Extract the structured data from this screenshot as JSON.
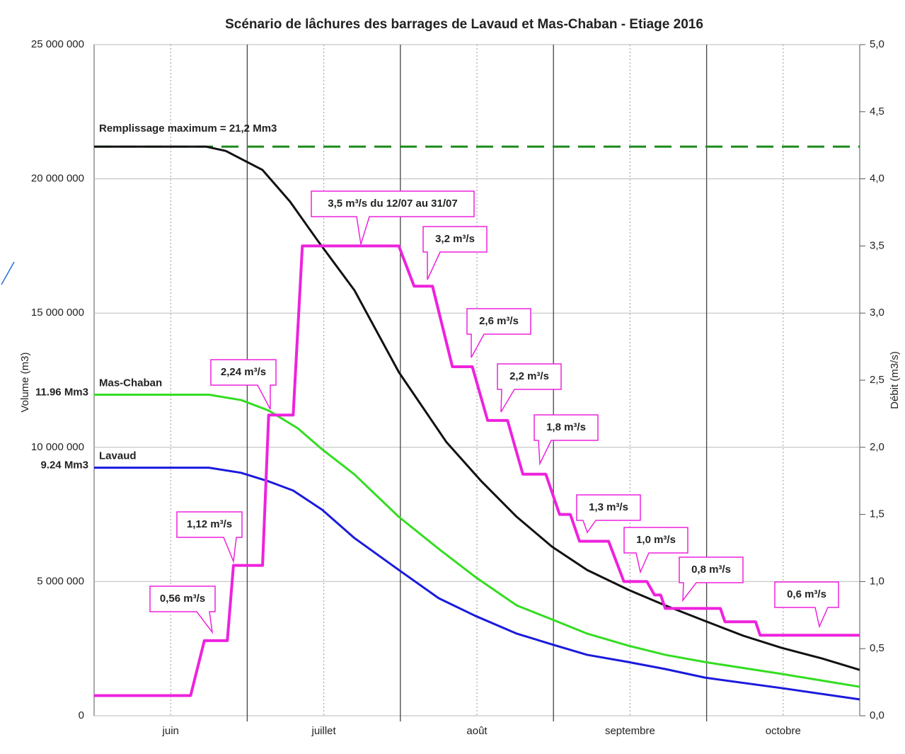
{
  "chart_data": {
    "type": "line",
    "title": "Scénario de lâchures des barrages de Lavaud et Mas-Chaban - Etiage 2016",
    "y_label": "Volume (m3)",
    "y2_label": "Débit (m3/s)",
    "categories": [
      "juin",
      "juillet",
      "août",
      "septembre",
      "octobre"
    ],
    "xlim": [
      0,
      5
    ],
    "ylim": [
      0,
      25000000
    ],
    "yticks": [
      {
        "value": 0,
        "label": "0"
      },
      {
        "value": 5000000,
        "label": "5 000 000"
      },
      {
        "value": 10000000,
        "label": "10 000 000"
      },
      {
        "value": 15000000,
        "label": "15 000 000"
      },
      {
        "value": 20000000,
        "label": "20 000 000"
      },
      {
        "value": 25000000,
        "label": "25 000 000"
      }
    ],
    "y2lim": [
      0,
      5
    ],
    "y2ticks": [
      {
        "value": 0,
        "label": "0,0"
      },
      {
        "value": 0.5,
        "label": "0,5"
      },
      {
        "value": 1,
        "label": "1,0"
      },
      {
        "value": 1.5,
        "label": "1,5"
      },
      {
        "value": 2,
        "label": "2,0"
      },
      {
        "value": 2.5,
        "label": "2,5"
      },
      {
        "value": 3,
        "label": "3,0"
      },
      {
        "value": 3.5,
        "label": "3,5"
      },
      {
        "value": 4,
        "label": "4,0"
      },
      {
        "value": 4.5,
        "label": "4,5"
      },
      {
        "value": 5,
        "label": "5,0"
      }
    ],
    "grid": true,
    "reference_line": {
      "value": 21200000,
      "label": "Remplissage maximum = 21,2 Mm3",
      "color": "#1a8a1a"
    },
    "series": [
      {
        "color": "#111111",
        "x": [
          0,
          0.73,
          0.86,
          1.1,
          1.28,
          1.46,
          1.7,
          1.99,
          2.3,
          2.53,
          2.76,
          2.99,
          3.22,
          3.49,
          3.73,
          3.99,
          4.24,
          4.49,
          4.75,
          5
        ],
        "values": [
          21200000,
          21200000,
          21040000,
          20330000,
          19150000,
          17700000,
          15850000,
          12800000,
          10200000,
          8730000,
          7410000,
          6300000,
          5430000,
          4690000,
          4110000,
          3530000,
          2980000,
          2530000,
          2140000,
          1710000
        ]
      },
      {
        "name": "Mas-Chaban",
        "color": "#33dd22",
        "start_label": "11.96 Mm3",
        "x": [
          0,
          0.75,
          0.96,
          1.14,
          1.33,
          1.49,
          1.7,
          1.99,
          2.25,
          2.49,
          2.76,
          2.99,
          3.22,
          3.49,
          3.73,
          3.99,
          4.49,
          5
        ],
        "values": [
          11960000,
          11960000,
          11760000,
          11370000,
          10710000,
          9920000,
          8990000,
          7410000,
          6220000,
          5170000,
          4110000,
          3590000,
          3060000,
          2610000,
          2270000,
          2000000,
          1560000,
          1080000
        ]
      },
      {
        "name": "Lavaud",
        "color": "#1a1add",
        "start_label": "9.24 Mm3",
        "x": [
          0,
          0.75,
          0.96,
          1.14,
          1.3,
          1.49,
          1.7,
          1.99,
          2.25,
          2.49,
          2.76,
          2.99,
          3.22,
          3.49,
          3.73,
          3.99,
          4.49,
          5
        ],
        "values": [
          9240000,
          9240000,
          9050000,
          8730000,
          8390000,
          7670000,
          6620000,
          5430000,
          4380000,
          3720000,
          3060000,
          2660000,
          2270000,
          2000000,
          1740000,
          1420000,
          1030000,
          610000
        ]
      },
      {
        "color": "#ee22dd",
        "axis": "y2",
        "x": [
          0,
          0.63,
          0.72,
          0.87,
          0.91,
          1.1,
          1.14,
          1.3,
          1.36,
          1.99,
          2.09,
          2.21,
          2.34,
          2.47,
          2.57,
          2.7,
          2.8,
          2.95,
          3.04,
          3.11,
          3.17,
          3.36,
          3.46,
          3.61,
          3.66,
          3.7,
          3.73,
          4.09,
          4.12,
          4.32,
          4.35,
          5
        ],
        "values": [
          0.15,
          0.15,
          0.56,
          0.56,
          1.12,
          1.12,
          2.24,
          2.24,
          3.5,
          3.5,
          3.2,
          3.2,
          2.6,
          2.6,
          2.2,
          2.2,
          1.8,
          1.8,
          1.5,
          1.5,
          1.3,
          1.3,
          1.0,
          1.0,
          0.9,
          0.9,
          0.8,
          0.8,
          0.7,
          0.7,
          0.6,
          0.6
        ]
      }
    ],
    "annotations": [
      "0,56 m³/s",
      "1,12 m³/s",
      "2,24 m³/s",
      "3,5 m³/s du 12/07 au 31/07",
      "3,2 m³/s",
      "2,6 m³/s",
      "2,2 m³/s",
      "1,8 m³/s",
      "1,3 m³/s",
      "1,0 m³/s",
      "0,8 m³/s",
      "0,6 m³/s"
    ]
  }
}
